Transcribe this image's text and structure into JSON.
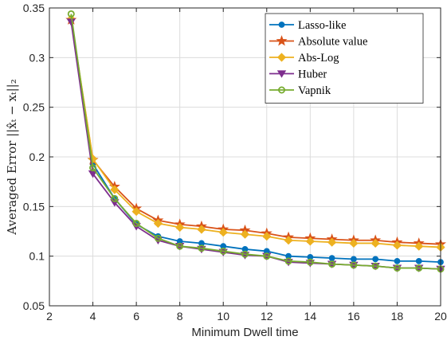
{
  "chart_data": {
    "type": "line",
    "xlabel": "Minimum Dwell time",
    "ylabel": "Averaged Error ||x̂ₜ − xₜ||₂",
    "xlim": [
      2,
      20
    ],
    "ylim": [
      0.05,
      0.35
    ],
    "xticks": [
      "2",
      "4",
      "6",
      "8",
      "10",
      "12",
      "14",
      "16",
      "18",
      "20"
    ],
    "yticks": [
      "0.05",
      "0.1",
      "0.15",
      "0.2",
      "0.25",
      "0.3",
      "0.35"
    ],
    "grid": true,
    "legend_position": "top-right",
    "x": [
      3,
      4,
      5,
      6,
      7,
      8,
      9,
      10,
      11,
      12,
      13,
      14,
      15,
      16,
      17,
      18,
      19,
      20
    ],
    "series": [
      {
        "name": "Lasso-like",
        "color": "#0072BD",
        "marker": "circle",
        "values": [
          0.338,
          0.193,
          0.158,
          0.132,
          0.12,
          0.115,
          0.113,
          0.11,
          0.107,
          0.105,
          0.1,
          0.099,
          0.098,
          0.097,
          0.097,
          0.095,
          0.095,
          0.094
        ]
      },
      {
        "name": "Absolute value",
        "color": "#D95319",
        "marker": "star",
        "values": [
          0.338,
          0.197,
          0.17,
          0.148,
          0.136,
          0.132,
          0.13,
          0.127,
          0.126,
          0.123,
          0.119,
          0.118,
          0.117,
          0.116,
          0.116,
          0.114,
          0.113,
          0.112
        ]
      },
      {
        "name": "Abs-Log",
        "color": "#EDB120",
        "marker": "diamond",
        "values": [
          0.339,
          0.198,
          0.167,
          0.145,
          0.133,
          0.129,
          0.127,
          0.124,
          0.122,
          0.12,
          0.116,
          0.115,
          0.114,
          0.113,
          0.113,
          0.111,
          0.11,
          0.109
        ]
      },
      {
        "name": "Huber",
        "color": "#7E2F8E",
        "marker": "triangle-down",
        "values": [
          0.336,
          0.183,
          0.154,
          0.13,
          0.116,
          0.11,
          0.107,
          0.104,
          0.101,
          0.1,
          0.094,
          0.093,
          0.092,
          0.091,
          0.09,
          0.088,
          0.088,
          0.087
        ]
      },
      {
        "name": "Vapnik",
        "color": "#77AC30",
        "marker": "circle-open",
        "values": [
          0.344,
          0.189,
          0.158,
          0.133,
          0.118,
          0.11,
          0.108,
          0.105,
          0.102,
          0.1,
          0.095,
          0.094,
          0.092,
          0.091,
          0.09,
          0.088,
          0.088,
          0.087
        ]
      }
    ]
  }
}
